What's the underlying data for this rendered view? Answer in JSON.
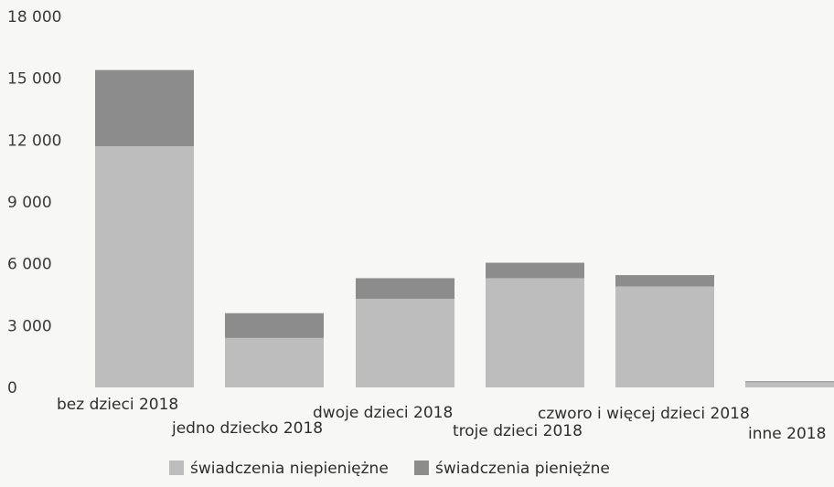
{
  "chart_data": {
    "type": "bar",
    "stacked": true,
    "title": "",
    "xlabel": "",
    "ylabel": "",
    "ylim": [
      0,
      18000
    ],
    "yticks": [
      0,
      3000,
      6000,
      9000,
      12000,
      15000,
      18000
    ],
    "ytick_labels": [
      "0",
      "3 000",
      "6 000",
      "9 000",
      "12 000",
      "15 000",
      "18 000"
    ],
    "grid": false,
    "legend_position": "bottom",
    "categories": [
      "bez dzieci 2018",
      "jedno dziecko 2018",
      "dwoje dzieci 2018",
      "troje dzieci 2018",
      "czworo i więcej dzieci 2018",
      "inne 2018"
    ],
    "series": [
      {
        "name": "świadczenia niepieniężne",
        "color": "#bdbdbd",
        "values": [
          11700,
          2400,
          4300,
          5300,
          4900,
          250
        ]
      },
      {
        "name": "świadczenia pieniężne",
        "color": "#8c8c8c",
        "values": [
          3700,
          1200,
          1000,
          750,
          550,
          50
        ]
      }
    ]
  }
}
